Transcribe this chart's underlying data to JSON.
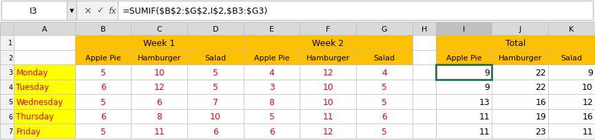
{
  "formula_bar_cell": "I3",
  "formula_bar_formula": "=SUMIF($B$2:$G$2,I$2,$B3:$G3)",
  "col_headers": [
    "A",
    "B",
    "C",
    "D",
    "E",
    "F",
    "G",
    "H",
    "I",
    "J",
    "K"
  ],
  "row_numbers": [
    1,
    2,
    3,
    4,
    5,
    6,
    7
  ],
  "week1_header": "Week 1",
  "week2_header": "Week 2",
  "total_header": "Total",
  "subheaders": [
    "Apple Pie",
    "Hamburger",
    "Salad"
  ],
  "days": [
    "Monday",
    "Tuesday",
    "Wednesday",
    "Thursday",
    "Friday"
  ],
  "week1_data": [
    [
      5,
      10,
      5
    ],
    [
      6,
      12,
      5
    ],
    [
      5,
      6,
      7
    ],
    [
      6,
      8,
      10
    ],
    [
      5,
      11,
      6
    ]
  ],
  "week2_data": [
    [
      4,
      12,
      4
    ],
    [
      3,
      10,
      5
    ],
    [
      8,
      10,
      5
    ],
    [
      5,
      11,
      6
    ],
    [
      6,
      12,
      5
    ]
  ],
  "total_data": [
    [
      9,
      22,
      9
    ],
    [
      9,
      22,
      10
    ],
    [
      13,
      16,
      12
    ],
    [
      11,
      19,
      16
    ],
    [
      11,
      23,
      11
    ]
  ],
  "orange_color": "#FFC000",
  "yellow_green_day": "#FFFF00",
  "header_bg": "#E8E8E8",
  "cell_bg": "#FFFFFF",
  "grid_color": "#BFBFBF",
  "formula_bar_bg": "#F2F2F2",
  "selected_cell_color": "#217346",
  "col_header_bg": "#D9D9D9",
  "row_header_bg": "#F2F2F2",
  "day_text_color": "#FF0000",
  "data_text_color": "#FF0000"
}
